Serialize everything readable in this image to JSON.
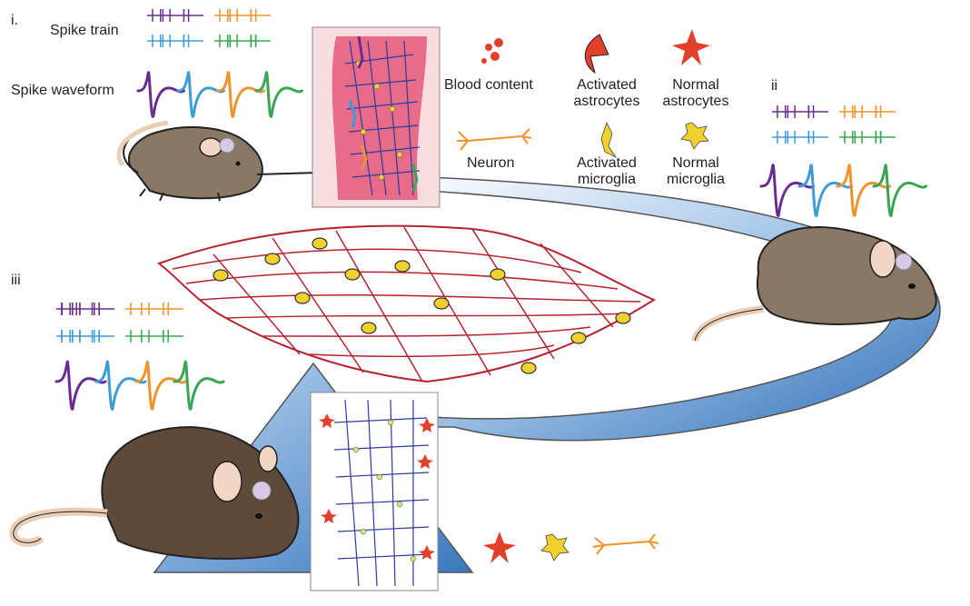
{
  "panels": {
    "i": "i.",
    "ii": "ii",
    "iii": "iii"
  },
  "labels": {
    "spike_train": "Spike train",
    "spike_waveform": "Spike waveform"
  },
  "legend": {
    "blood_content": "Blood content",
    "activated_astrocytes": "Activated\nastrocytes",
    "normal_astrocytes": "Normal\nastrocytes",
    "neuron": "Neuron",
    "activated_microglia": "Activated\nmicroglia",
    "normal_microglia": "Normal\nmicroglia"
  },
  "colors": {
    "purple": "#6a2c91",
    "blue": "#3d9bd6",
    "orange": "#f0932b",
    "green": "#3aa655",
    "astrocyte_red": "#e2402a",
    "microglia_yellow": "#f2d02e",
    "mesh_red": "#b5232f",
    "mesh_blue": "#2b3d9c",
    "tissue_pink": "#e86b8a",
    "arrow_blue": "#3b7dc4",
    "mouse_brown": "#8a7866"
  }
}
